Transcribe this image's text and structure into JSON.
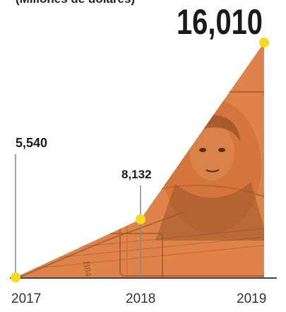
{
  "chart_data": {
    "type": "area",
    "subtitle": "(Millones de dólares)",
    "categories": [
      "2017",
      "2018",
      "2019"
    ],
    "values": [
      5540,
      8132,
      16010
    ],
    "value_labels": [
      "5,540",
      "8,132",
      "16,010"
    ],
    "grid": false,
    "legend": "none",
    "colors": {
      "fill": "#e0834a",
      "fill_dark": "#b85c27",
      "marker": "#f5dc1a",
      "line": "#888888",
      "axis": "#444444"
    },
    "background_image": "dollar-bill-engraving"
  }
}
